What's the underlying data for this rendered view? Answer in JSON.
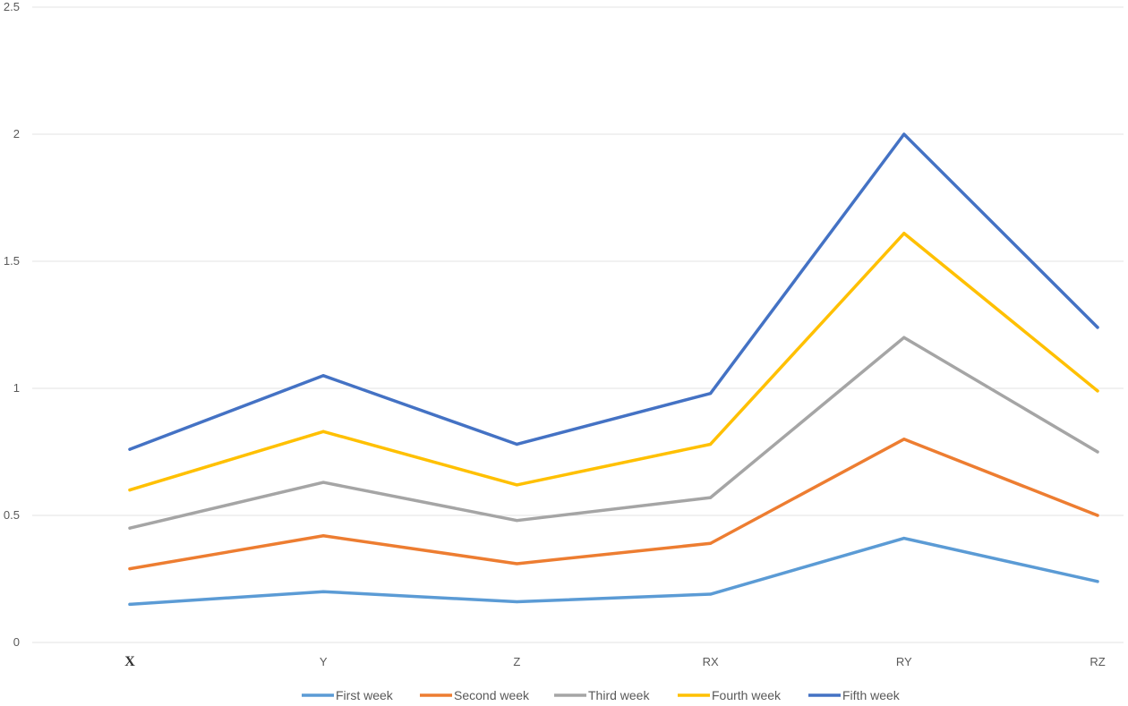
{
  "chart_data": {
    "type": "line",
    "categories": [
      "X",
      "Y",
      "Z",
      "RX",
      "RY",
      "RZ"
    ],
    "ylim": [
      0,
      2.5
    ],
    "yticks": [
      "0",
      "0.5",
      "1",
      "1.5",
      "2",
      "2.5"
    ],
    "grid": true,
    "legend_position": "bottom",
    "series": [
      {
        "name": "First week",
        "color": "#5b9bd5",
        "values": [
          0.15,
          0.2,
          0.16,
          0.19,
          0.41,
          0.24
        ]
      },
      {
        "name": "Second week",
        "color": "#ed7d31",
        "values": [
          0.29,
          0.42,
          0.31,
          0.39,
          0.8,
          0.5
        ]
      },
      {
        "name": "Third week",
        "color": "#a5a5a5",
        "values": [
          0.45,
          0.63,
          0.48,
          0.57,
          1.2,
          0.75
        ]
      },
      {
        "name": "Fourth week",
        "color": "#ffc000",
        "values": [
          0.6,
          0.83,
          0.62,
          0.78,
          1.61,
          0.99
        ]
      },
      {
        "name": "Fifth week",
        "color": "#4472c4",
        "values": [
          0.76,
          1.05,
          0.78,
          0.98,
          2.0,
          1.24
        ]
      }
    ]
  }
}
